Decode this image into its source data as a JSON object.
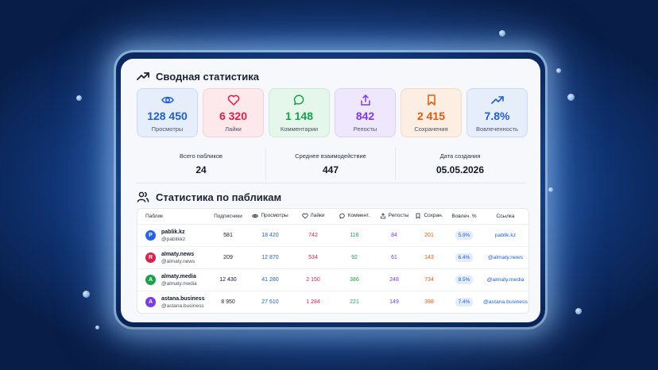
{
  "summary": {
    "title": "Сводная статистика",
    "tiles": [
      {
        "icon": "eye-icon",
        "value": "128 450",
        "label": "Просмотры",
        "color": "#1d5fd6",
        "bg": "#e6eefc",
        "border": "#c9daf8"
      },
      {
        "icon": "heart-icon",
        "value": "6 320",
        "label": "Лайки",
        "color": "#e11d48",
        "bg": "#fde8ec",
        "border": "#f8cfd8"
      },
      {
        "icon": "comment-icon",
        "value": "1 148",
        "label": "Комментарии",
        "color": "#16a34a",
        "bg": "#e5f6ea",
        "border": "#c9ecd4"
      },
      {
        "icon": "share-icon",
        "value": "842",
        "label": "Репосты",
        "color": "#7c3aed",
        "bg": "#efe8fd",
        "border": "#ddd0fa"
      },
      {
        "icon": "bookmark-icon",
        "value": "2 415",
        "label": "Сохранения",
        "color": "#ea580c",
        "bg": "#fdeee3",
        "border": "#f8d9c3"
      },
      {
        "icon": "trend-icon",
        "value": "7.8%",
        "label": "Вовлеченность",
        "color": "#1d5fd6",
        "bg": "#e6eefc",
        "border": "#c9daf8"
      }
    ],
    "total_label": "Всего пабликов",
    "total_value": "24",
    "avg_label": "Среднее взаимодействие",
    "avg_value": "447",
    "date_label": "Дата создания",
    "date_value": "05.05.2026"
  },
  "publics": {
    "title": "Статистика по пабликам",
    "headers": {
      "name": "Паблик",
      "subscribers": "Подписчики",
      "views": "Просмотры",
      "likes": "Лайки",
      "comments": "Коммент.",
      "reposts": "Репосты",
      "saves": "Сохран.",
      "engagement": "Вовлеч. %",
      "link": "Ссылка"
    },
    "rows": [
      {
        "letter": "P",
        "avatar_color": "#2563eb",
        "name": "pablik.kz",
        "handle": "@pablikkz",
        "subscribers": "581",
        "views": "18 420",
        "likes": "742",
        "comments": "116",
        "reposts": "84",
        "saves": "201",
        "engagement": "5.9%",
        "link": "pablik.kz"
      },
      {
        "letter": "R",
        "avatar_color": "#e11d48",
        "name": "almaty.news",
        "handle": "@almaty.news",
        "subscribers": "209",
        "views": "12 870",
        "likes": "534",
        "comments": "92",
        "reposts": "61",
        "saves": "143",
        "engagement": "6.4%",
        "link": "@almaty.news"
      },
      {
        "letter": "A",
        "avatar_color": "#16a34a",
        "name": "almaty.media",
        "handle": "@almaty.media",
        "subscribers": "12 430",
        "views": "41 280",
        "likes": "2 150",
        "comments": "386",
        "reposts": "248",
        "saves": "734",
        "engagement": "8.5%",
        "link": "@almaty.media"
      },
      {
        "letter": "A",
        "avatar_color": "#7c3aed",
        "name": "astana.business",
        "handle": "@astana.business",
        "subscribers": "8 950",
        "views": "27 610",
        "likes": "1 284",
        "comments": "221",
        "reposts": "149",
        "saves": "398",
        "engagement": "7.4%",
        "link": "@astana.business"
      }
    ]
  }
}
